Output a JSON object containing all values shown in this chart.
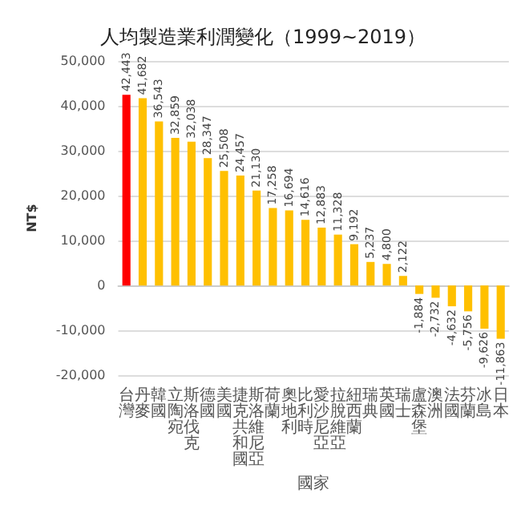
{
  "chart_data": {
    "type": "bar",
    "title": "人均製造業利潤變化（1999~2019）",
    "xlabel": "國家",
    "ylabel": "NT$",
    "categories": [
      "台灣",
      "丹麥",
      "韓國",
      "立陶宛",
      "斯洛伐克",
      "德國",
      "美國",
      "捷克共和國",
      "斯洛維尼亞",
      "荷蘭",
      "奧地利",
      "比利時",
      "愛沙尼亞",
      "拉脫維亞",
      "紐西蘭",
      "瑞典",
      "英國",
      "瑞士",
      "盧森堡",
      "澳洲",
      "法國",
      "芬蘭",
      "冰島",
      "日本"
    ],
    "values": [
      42443,
      41682,
      36543,
      32859,
      32038,
      28347,
      25508,
      24457,
      21130,
      17258,
      16694,
      14616,
      12883,
      11328,
      9192,
      5237,
      4800,
      2122,
      -1884,
      -2732,
      -4632,
      -5756,
      -9626,
      -11863
    ],
    "value_labels": [
      "42,443",
      "41,682",
      "36,543",
      "32,859",
      "32,038",
      "28,347",
      "25,508",
      "24,457",
      "21,130",
      "17,258",
      "16,694",
      "14,616",
      "12,883",
      "11,328",
      "9,192",
      "5,237",
      "4,800",
      "2,122",
      "-1,884",
      "-2,732",
      "-4,632",
      "-5,756",
      "-9,626",
      "-11,863"
    ],
    "colors": [
      "#ff0000",
      "#ffc000",
      "#ffc000",
      "#ffc000",
      "#ffc000",
      "#ffc000",
      "#ffc000",
      "#ffc000",
      "#ffc000",
      "#ffc000",
      "#ffc000",
      "#ffc000",
      "#ffc000",
      "#ffc000",
      "#ffc000",
      "#ffc000",
      "#ffc000",
      "#ffc000",
      "#ffc000",
      "#ffc000",
      "#ffc000",
      "#ffc000",
      "#ffc000",
      "#ffc000"
    ],
    "ylim": [
      -20000,
      50000
    ],
    "yticks": [
      {
        "value": -20000,
        "label": "-20,000"
      },
      {
        "value": -10000,
        "label": "-10,000"
      },
      0,
      {
        "value": 10000,
        "label": "10,000"
      },
      {
        "value": 20000,
        "label": "20,000"
      },
      {
        "value": 30000,
        "label": "30,000"
      },
      {
        "value": 40000,
        "label": "40,000"
      },
      {
        "value": 50000,
        "label": "50,000"
      }
    ],
    "grid": "y"
  }
}
